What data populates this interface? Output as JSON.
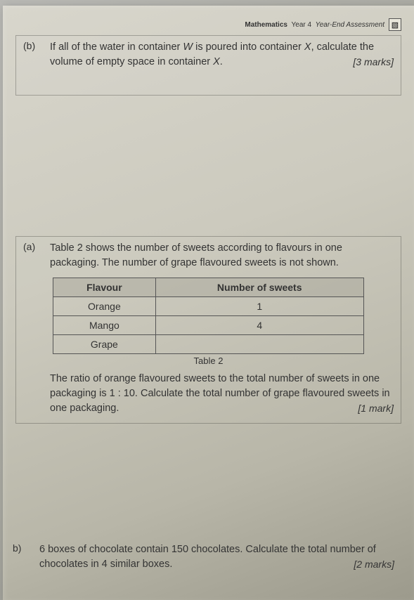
{
  "header": {
    "subject": "Mathematics",
    "year": "Year 4",
    "assessment": "Year-End Assessment",
    "icon_glyph": "▧"
  },
  "q1": {
    "label": "(b)",
    "text_pre": "If all of the water in container ",
    "var1": "W",
    "text_mid": " is poured into container ",
    "var2": "X",
    "text_mid2": ", calculate the volume of empty space in container ",
    "var3": "X",
    "text_end": ".",
    "marks": "[3 marks]"
  },
  "q2": {
    "label": "(a)",
    "intro_l1": "Table 2 shows the number of sweets according to flavours in one packaging.",
    "intro_l2": "The number of grape flavoured sweets is not shown.",
    "table": {
      "col1": "Flavour",
      "col2": "Number of sweets",
      "rows": [
        {
          "flavour": "Orange",
          "count": "1"
        },
        {
          "flavour": "Mango",
          "count": "4"
        },
        {
          "flavour": "Grape",
          "count": ""
        }
      ],
      "caption": "Table 2"
    },
    "body": "The ratio of orange flavoured sweets to the total number of sweets in one packaging is 1 : 10. Calculate the total number of grape flavoured sweets in one packaging.",
    "marks": "[1 mark]"
  },
  "q3": {
    "label": "b)",
    "body": "6 boxes of chocolate contain 150 chocolates. Calculate the total number of chocolates in 4 similar boxes.",
    "marks": "[2 marks]"
  }
}
